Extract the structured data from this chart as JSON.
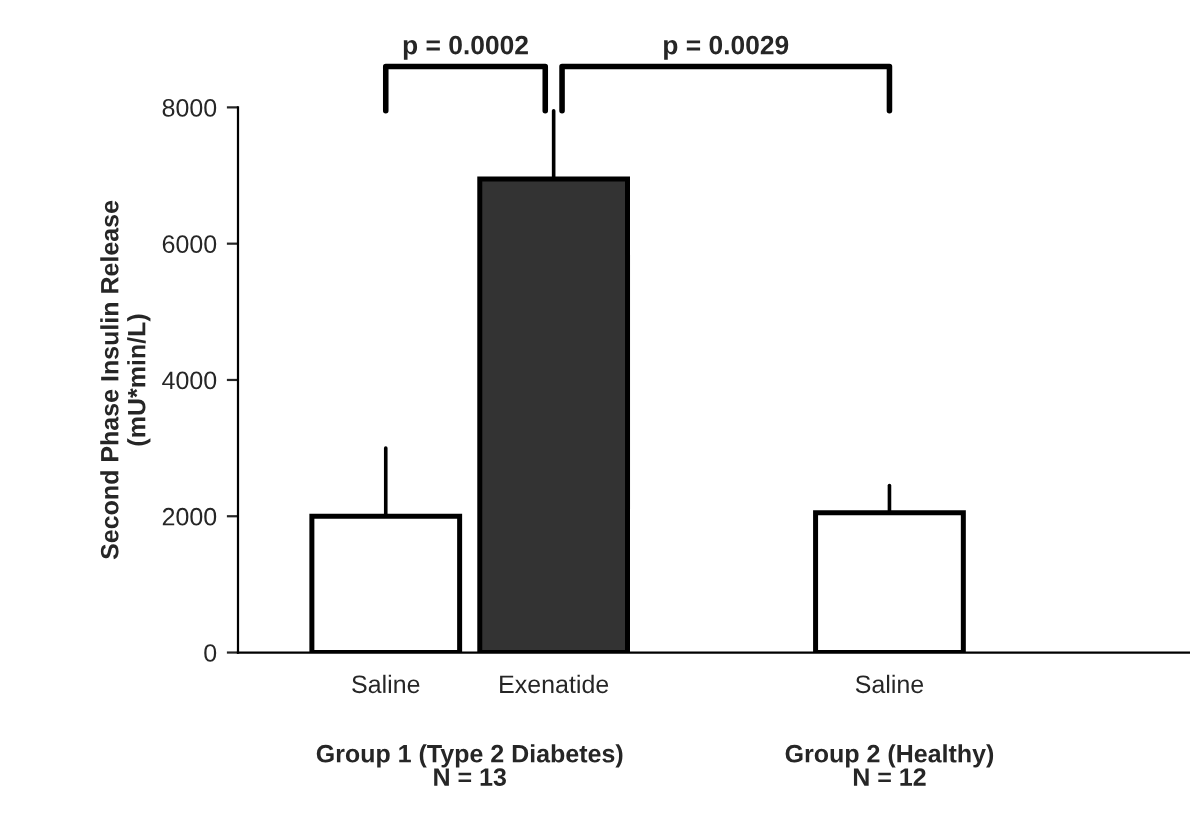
{
  "chart_data": {
    "type": "bar",
    "ylabel": "Second Phase Insulin Release\n(mU*min/L)",
    "categories": [
      "Saline",
      "Exenatide",
      null,
      "Saline",
      null
    ],
    "values": [
      2000,
      6950,
      null,
      2050,
      null
    ],
    "colors": [
      "#ffffff",
      "#333333",
      null,
      "#ffffff",
      null
    ],
    "errors": [
      [
        2000,
        3000
      ],
      [
        6950,
        7950
      ],
      null,
      [
        2050,
        2450
      ],
      null
    ],
    "ylim": [
      0,
      8000
    ],
    "yticks": [
      0,
      2000,
      4000,
      6000,
      8000
    ],
    "grid": false,
    "annotations": [
      "p = 0.0002",
      "p = 0.0029",
      "Group 1 (Type 2 Diabetes)\nN = 13",
      "Group 2 (Healthy)\nN = 12"
    ]
  }
}
